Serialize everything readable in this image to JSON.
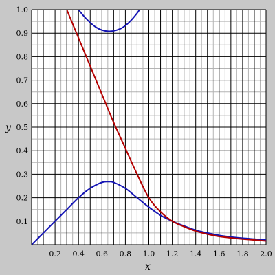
{
  "chart_data": {
    "type": "line",
    "xlabel": "x",
    "ylabel": "y",
    "xlim": [
      0,
      2.0
    ],
    "ylim": [
      0,
      1.0
    ],
    "grid": true,
    "x_ticks": [
      "0.2",
      "0.4",
      "0.6",
      "0.8",
      "1.0",
      "1.2",
      "1.4",
      "1.6",
      "1.8",
      "2.0"
    ],
    "y_ticks": [
      "0.1",
      "0.2",
      "0.3",
      "0.4",
      "0.5",
      "0.6",
      "0.7",
      "0.8",
      "0.9",
      "1.0"
    ],
    "colors": {
      "background": "#c8c8c8",
      "plot_area": "#ffffff",
      "grid_major": "#000000",
      "grid_minor": "#b4b4b4"
    },
    "series": [
      {
        "color": "#1414b4",
        "x": [
          0,
          0.1,
          0.2,
          0.3,
          0.4,
          0.5,
          0.6,
          0.66,
          0.7,
          0.8,
          0.9,
          1.0,
          1.1,
          1.2,
          1.3,
          1.4,
          1.5,
          1.6,
          1.7,
          1.8,
          1.9,
          2.0
        ],
        "values": [
          0.0,
          0.05,
          0.1,
          0.15,
          0.2,
          0.24,
          0.265,
          0.268,
          0.265,
          0.24,
          0.2,
          0.16,
          0.125,
          0.1,
          0.08,
          0.062,
          0.05,
          0.04,
          0.033,
          0.028,
          0.024,
          0.02
        ]
      },
      {
        "color": "#b40000",
        "x": [
          0.3,
          0.4,
          0.5,
          0.6,
          0.7,
          0.8,
          0.9,
          1.0,
          1.1,
          1.2,
          1.3,
          1.4,
          1.5,
          1.6,
          1.7,
          1.8,
          1.9,
          2.0
        ],
        "values": [
          1.0,
          0.88,
          0.76,
          0.64,
          0.52,
          0.41,
          0.3,
          0.2,
          0.14,
          0.1,
          0.077,
          0.058,
          0.045,
          0.035,
          0.029,
          0.024,
          0.02,
          0.016
        ]
      },
      {
        "color": "#1414b4",
        "x": [
          0.4,
          0.45,
          0.5,
          0.55,
          0.6,
          0.66,
          0.72,
          0.78,
          0.84,
          0.9,
          0.92
        ],
        "values": [
          1.0,
          0.97,
          0.945,
          0.925,
          0.913,
          0.908,
          0.912,
          0.925,
          0.95,
          0.985,
          1.0
        ]
      }
    ]
  }
}
